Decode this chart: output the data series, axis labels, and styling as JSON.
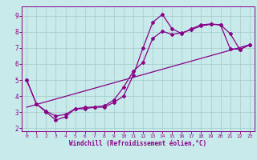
{
  "bg_color": "#c8eaea",
  "grid_color": "#a8d0d0",
  "line_color": "#880088",
  "marker": "D",
  "marker_size": 2.0,
  "line_width": 0.9,
  "xlabel": "Windchill (Refroidissement éolien,°C)",
  "xlim": [
    -0.5,
    23.5
  ],
  "ylim": [
    1.8,
    9.6
  ],
  "yticks": [
    2,
    3,
    4,
    5,
    6,
    7,
    8,
    9
  ],
  "xticks": [
    0,
    1,
    2,
    3,
    4,
    5,
    6,
    7,
    8,
    9,
    10,
    11,
    12,
    13,
    14,
    15,
    16,
    17,
    18,
    19,
    20,
    21,
    22,
    23
  ],
  "series1_x": [
    0,
    1,
    2,
    3,
    4,
    5,
    6,
    7,
    8,
    9,
    10,
    11,
    12,
    13,
    14,
    15,
    16,
    17,
    18,
    19,
    20,
    21,
    22,
    23
  ],
  "series1_y": [
    5.0,
    3.5,
    3.0,
    2.5,
    2.7,
    3.2,
    3.2,
    3.3,
    3.3,
    3.6,
    4.0,
    5.3,
    7.0,
    8.6,
    9.1,
    8.2,
    7.9,
    8.2,
    8.45,
    8.5,
    8.45,
    7.9,
    6.9,
    7.2
  ],
  "series2_x": [
    0,
    1,
    2,
    3,
    4,
    5,
    6,
    7,
    8,
    9,
    10,
    11,
    12,
    13,
    14,
    15,
    16,
    17,
    18,
    19,
    20,
    21,
    22,
    23
  ],
  "series2_y": [
    5.0,
    3.5,
    3.05,
    2.75,
    2.85,
    3.2,
    3.28,
    3.32,
    3.38,
    3.75,
    4.55,
    5.55,
    6.1,
    7.6,
    8.05,
    7.85,
    7.95,
    8.15,
    8.38,
    8.48,
    8.45,
    6.95,
    6.92,
    7.2
  ],
  "series3_x": [
    0,
    23
  ],
  "series3_y": [
    3.3,
    7.2
  ]
}
